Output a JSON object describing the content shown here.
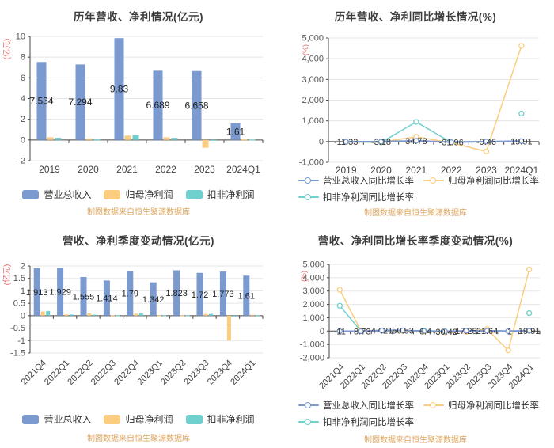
{
  "footer_note": "制图数据来自恒生聚源数据库",
  "colors": {
    "revenue_blue": "#7A9AD0",
    "net_profit_orange": "#FACD7F",
    "non_gaap_teal": "#6FD0CE",
    "axis_unit_red": "#E16A6A",
    "footer_orange": "#DCA45C"
  },
  "chart_data": [
    {
      "type": "bar",
      "title": "历年营收、净利情况(亿元)",
      "y_unit": "(亿元)",
      "categories": [
        "2019",
        "2020",
        "2021",
        "2022",
        "2023",
        "2024Q1"
      ],
      "ylim": [
        -2,
        10
      ],
      "y_tick_values": [
        10,
        8,
        6,
        4,
        2,
        0,
        -2
      ],
      "y_tick_labels": [
        "10",
        "8",
        "6",
        "4",
        "2",
        "0",
        "-2"
      ],
      "series": [
        {
          "name": "营业总收入",
          "color": "#7A9AD0",
          "values": [
            7.534,
            7.294,
            9.83,
            6.689,
            6.658,
            1.61
          ],
          "labels": [
            "7.534",
            "7.294",
            "9.83",
            "6.689",
            "6.658",
            "1.61"
          ]
        },
        {
          "name": "归母净利润",
          "color": "#FACD7F",
          "values": [
            0.27,
            0.13,
            0.42,
            0.26,
            -0.75,
            0.05
          ]
        },
        {
          "name": "扣非净利润",
          "color": "#6FD0CE",
          "values": [
            0.21,
            0.05,
            0.46,
            0.21,
            -0.03,
            0.03
          ]
        }
      ],
      "legend_rows": [
        [
          "营业总收入",
          "归母净利润",
          "扣非净利润"
        ]
      ]
    },
    {
      "type": "line",
      "title": "历年营收、净利同比增长情况(%)",
      "y_unit": "(%)",
      "categories": [
        "2019",
        "2020",
        "2021",
        "2022",
        "2023",
        "2024Q1"
      ],
      "ylim": [
        -1000,
        5000
      ],
      "y_tick_values": [
        5000,
        4000,
        3000,
        2000,
        1000,
        0,
        -1000
      ],
      "y_tick_labels": [
        "5,000",
        "4,000",
        "3,000",
        "2,000",
        "1,000",
        "0",
        "-1,000"
      ],
      "series": [
        {
          "name": "营业总收入同比增长率",
          "color": "#7A9AD0",
          "values": [
            -11.33,
            -3.18,
            34.78,
            -31.96,
            -0.46,
            19.91
          ],
          "labels": [
            "-11.33",
            "-3.18",
            "34.78",
            "-31.96",
            "-0.46",
            "19.91"
          ]
        },
        {
          "name": "归母净利润同比增长率",
          "color": "#FACD7F",
          "values": [
            -20,
            -30,
            230,
            -60,
            -480,
            4620
          ]
        },
        {
          "name": "扣非净利润同比增长率",
          "color": "#6FD0CE",
          "values": [
            -15,
            -45,
            950,
            -45,
            null,
            1350
          ]
        }
      ],
      "legend_rows": [
        [
          "营业总收入同比增长率",
          "归母净利润同比增长率"
        ],
        [
          "扣非净利润同比增长率"
        ]
      ]
    },
    {
      "type": "bar",
      "title": "营收、净利季度变动情况(亿元)",
      "y_unit": "(亿元)",
      "categories": [
        "2021Q4",
        "2022Q1",
        "2022Q2",
        "2022Q3",
        "2022Q4",
        "2023Q1",
        "2023Q2",
        "2023Q3",
        "2023Q4",
        "2024Q1"
      ],
      "ylim": [
        -1.5,
        2
      ],
      "y_tick_values": [
        2,
        1.5,
        1,
        0.5,
        0,
        -0.5,
        -1,
        -1.5
      ],
      "y_tick_labels": [
        "2",
        "1.5",
        "1",
        "0.5",
        "0",
        "-0.5",
        "-1",
        "-1.5"
      ],
      "series": [
        {
          "name": "营业总收入",
          "color": "#7A9AD0",
          "values": [
            1.913,
            1.929,
            1.555,
            1.414,
            1.79,
            1.342,
            1.823,
            1.72,
            1.773,
            1.61
          ],
          "labels": [
            "1.913",
            "1.929",
            "1.555",
            "1.414",
            "1.79",
            "1.342",
            "1.823",
            "1.72",
            "1.773",
            "1.61"
          ]
        },
        {
          "name": "归母净利润",
          "color": "#FACD7F",
          "values": [
            0.17,
            0.05,
            0.09,
            0.02,
            0.08,
            0.01,
            0.01,
            0.07,
            -1.0,
            0.04
          ]
        },
        {
          "name": "扣非净利润",
          "color": "#6FD0CE",
          "values": [
            0.19,
            0.05,
            0.04,
            0.01,
            0.09,
            0.01,
            0.01,
            0.07,
            -0.01,
            0.02
          ]
        }
      ],
      "legend_rows": [
        [
          "营业总收入",
          "归母净利润",
          "扣非净利润"
        ]
      ]
    },
    {
      "type": "line",
      "title": "营收、净利同比增长率季度变动情况(%)",
      "y_unit": "(%)",
      "categories": [
        "2021Q4",
        "2022Q1",
        "2022Q2",
        "2022Q3",
        "2022Q4",
        "2023Q1",
        "2023Q2",
        "2023Q3",
        "2023Q4",
        "2024Q1"
      ],
      "ylim": [
        -2000,
        5000
      ],
      "y_tick_values": [
        5000,
        4000,
        3000,
        2000,
        1000,
        0,
        -1000,
        -2000
      ],
      "y_tick_labels": [
        "5,000",
        "4,000",
        "3,000",
        "2,000",
        "1,000",
        "0",
        "-1,000",
        "-2,000"
      ],
      "series": [
        {
          "name": "营业总收入同比增长率",
          "color": "#7A9AD0",
          "values": [
            -11,
            -8.73,
            47.21,
            50.53,
            -6.4,
            -30.42,
            17.25,
            21.64,
            -1,
            19.91
          ],
          "labels": [
            "-11",
            "-8.73",
            "47.21",
            "50.53",
            "-6.4",
            "-30.42",
            "17.25",
            "21.64",
            "-1",
            "19.91"
          ]
        },
        {
          "name": "归母净利润同比增长率",
          "color": "#FACD7F",
          "values": [
            3100,
            30,
            50,
            0,
            -50,
            -90,
            -60,
            150,
            -1450,
            4620
          ]
        },
        {
          "name": "扣非净利润同比增长率",
          "color": "#6FD0CE",
          "values": [
            1900,
            20,
            30,
            10,
            40,
            -20,
            -10,
            50,
            null,
            1350
          ]
        }
      ],
      "legend_rows": [
        [
          "营业总收入同比增长率",
          "归母净利润同比增长率"
        ],
        [
          "扣非净利润同比增长率"
        ]
      ]
    }
  ]
}
